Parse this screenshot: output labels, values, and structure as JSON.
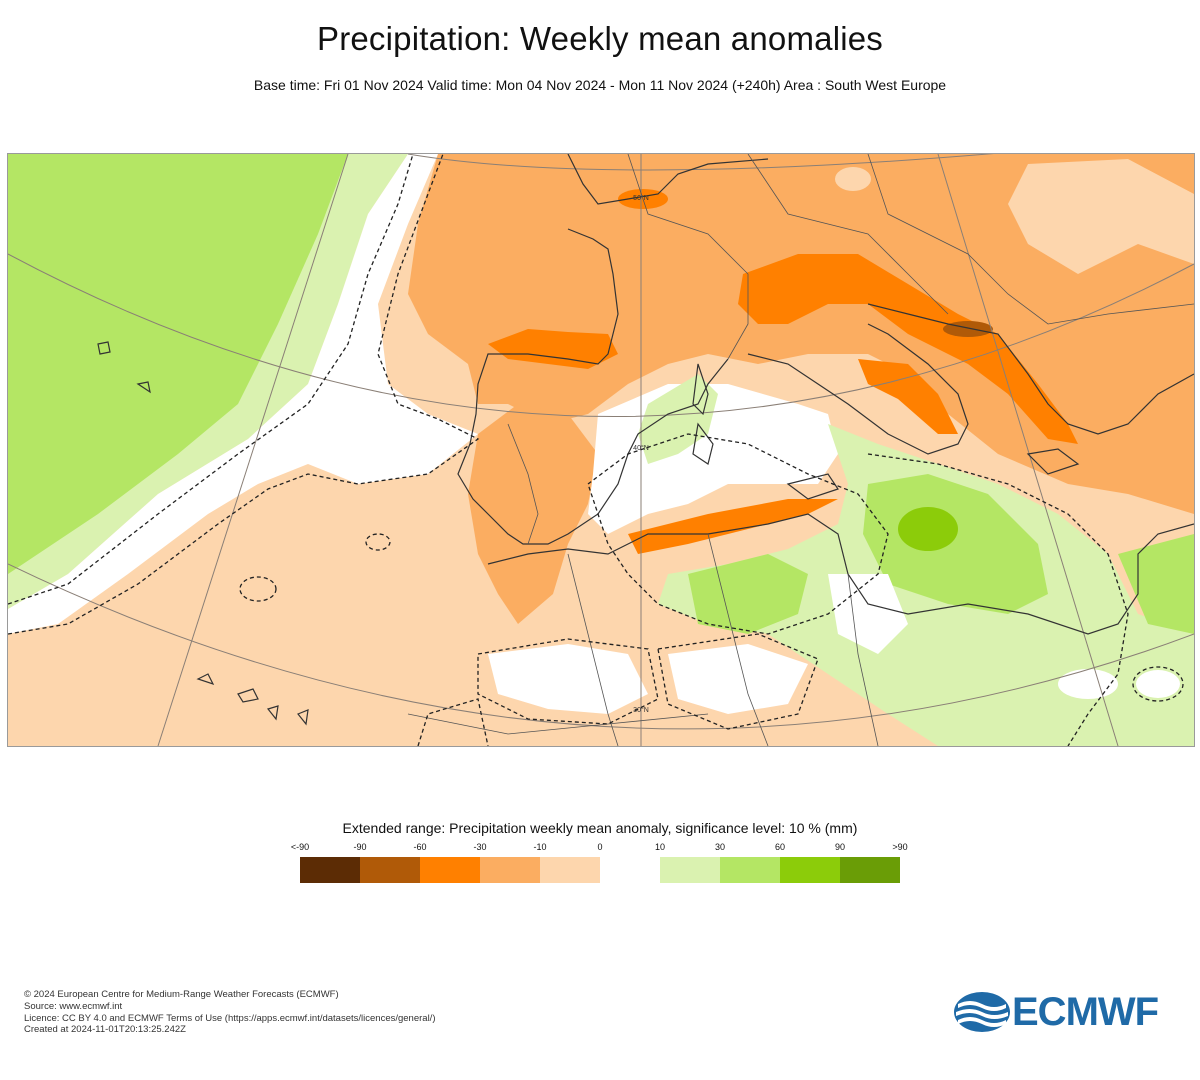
{
  "header": {
    "title": "Precipitation: Weekly mean anomalies",
    "subtitle": "Base time: Fri 01 Nov 2024 Valid time: Mon 04 Nov 2024 - Mon 11 Nov 2024 (+240h) Area : South West Europe"
  },
  "map": {
    "grid_labels": [
      "50°N",
      "40°N",
      "30°N"
    ]
  },
  "legend": {
    "title": "Extended range: Precipitation weekly mean anomaly, significance level: 10 % (mm)",
    "labels": [
      "<-90",
      "-90",
      "-60",
      "-30",
      "-10",
      "0",
      "10",
      "30",
      "60",
      "90",
      ">90"
    ],
    "colors": [
      "#5c2c05",
      "#b05a08",
      "#ff8000",
      "#fbad61",
      "#fdd6ad",
      "#ffffff",
      "#daf2b0",
      "#b4e664",
      "#8ccc0a",
      "#6a9d06",
      "#4d6e08"
    ]
  },
  "footer": {
    "line1": "© 2024 European Centre for Medium-Range Weather Forecasts (ECMWF)",
    "line2": "Source: www.ecmwf.int",
    "line3": "Licence: CC BY 4.0 and ECMWF Terms of Use (https://apps.ecmwf.int/datasets/licences/general/)",
    "line4": "Created at 2024-11-01T20:13:25.242Z"
  },
  "logo": {
    "text": "ECMWF",
    "color": "#1f6aa7"
  }
}
